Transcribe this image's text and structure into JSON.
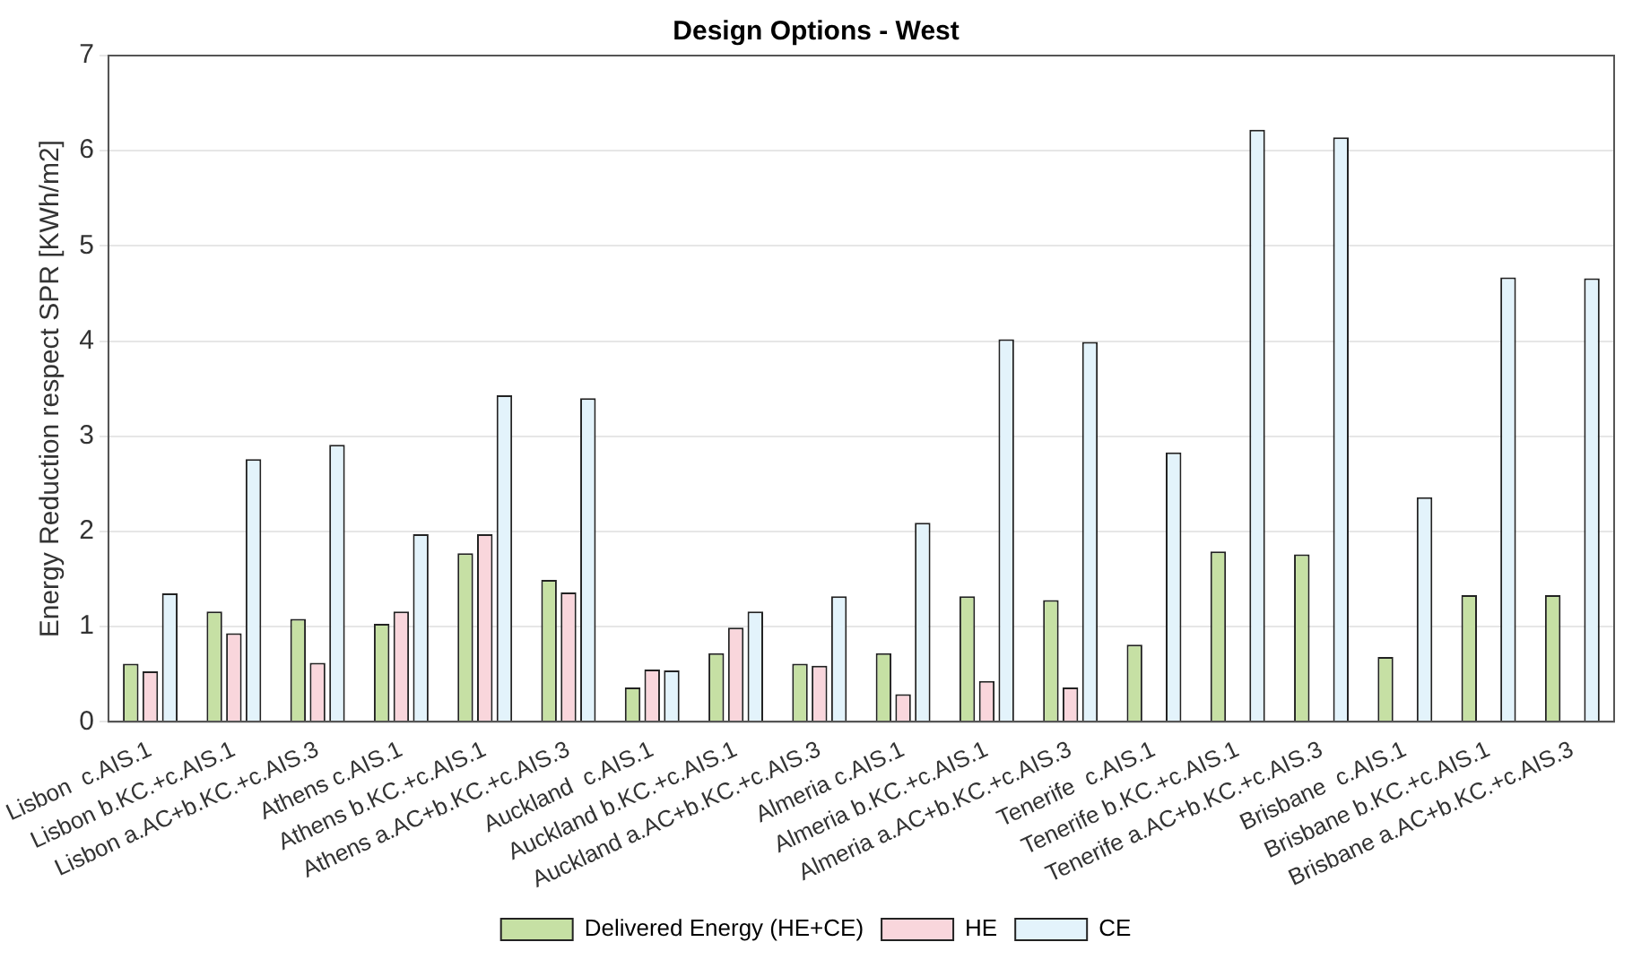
{
  "chart_data": {
    "type": "bar",
    "title": "Design Options - West",
    "ylabel": "Energy Reduction respect SPR [KWh/m2]",
    "categories": [
      "Lisbon  c.AIS.1",
      "Lisbon b.KC.+c.AIS.1",
      "Lisbon a.AC+b.KC.+c.AIS.3",
      "Athens c.AIS.1",
      "Athens b.KC.+c.AIS.1",
      "Athens a.AC+b.KC.+c.AIS.3",
      "Auckland  c.AIS.1",
      "Auckland b.KC.+c.AIS.1",
      "Auckland a.AC+b.KC.+c.AIS.3",
      "Almeria c.AIS.1",
      "Almeria b.KC.+c.AIS.1",
      "Almeria a.AC+b.KC.+c.AIS.3",
      "Tenerife  c.AIS.1",
      "Tenerife b.KC.+c.AIS.1",
      "Tenerife a.AC+b.KC.+c.AIS.3",
      "Brisbane  c.AIS.1",
      "Brisbane b.KC.+c.AIS.1",
      "Brisbane a.AC+b.KC.+c.AIS.3"
    ],
    "series": [
      {
        "name": "Delivered Energy (HE+CE)",
        "color": "#c6e0a4",
        "values": [
          0.61,
          1.16,
          1.08,
          1.03,
          1.77,
          1.49,
          0.36,
          0.72,
          0.61,
          0.72,
          1.32,
          1.28,
          0.81,
          1.79,
          1.76,
          0.68,
          1.33,
          1.33
        ]
      },
      {
        "name": "HE",
        "color": "#f9d6dc",
        "values": [
          0.53,
          0.93,
          0.62,
          1.16,
          1.97,
          1.36,
          0.55,
          0.99,
          0.59,
          0.29,
          0.43,
          0.36,
          0,
          0,
          0,
          0,
          0,
          0
        ]
      },
      {
        "name": "CE",
        "color": "#e3f3fb",
        "values": [
          1.35,
          2.76,
          2.91,
          1.97,
          3.43,
          3.4,
          0.54,
          1.16,
          1.32,
          2.09,
          4.02,
          3.99,
          2.83,
          6.22,
          6.14,
          2.36,
          4.67,
          4.66
        ]
      }
    ],
    "ylim": [
      0,
      7
    ],
    "yticks": [
      0,
      1,
      2,
      3,
      4,
      5,
      6,
      7
    ],
    "grid": "y",
    "legend": "bottom"
  }
}
